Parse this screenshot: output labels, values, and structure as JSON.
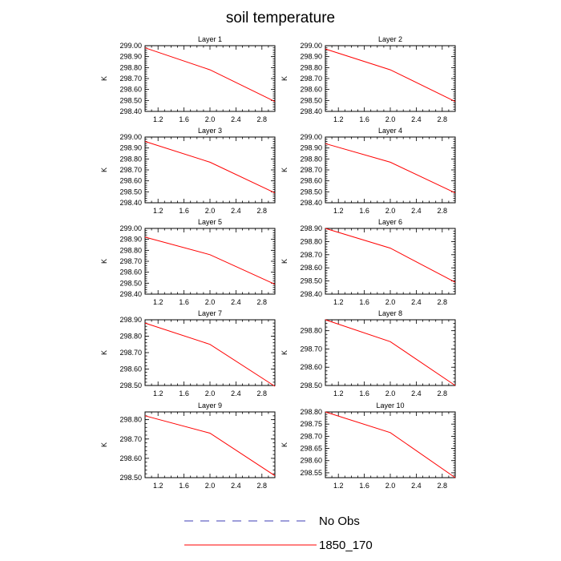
{
  "figure": {
    "title": "soil temperature",
    "colors": {
      "series": "#ff0000",
      "no_obs": "#3c3cb4",
      "axis": "#000000"
    }
  },
  "legend": {
    "entries": [
      {
        "label": "No Obs",
        "style": "dashed",
        "color": "#3c3cb4"
      },
      {
        "label": "1850_170",
        "style": "solid",
        "color": "#ff0000"
      }
    ]
  },
  "chart_data": [
    {
      "type": "line",
      "title": "Layer 1",
      "xlabel": "",
      "ylabel": "K",
      "xlim": [
        1.0,
        3.0
      ],
      "ylim": [
        298.4,
        299.0
      ],
      "xticks": [
        1.2,
        1.6,
        2.0,
        2.4,
        2.8
      ],
      "xtick_labels": [
        "1.2",
        "1.6",
        "2.0",
        "2.4",
        "2.8"
      ],
      "yticks": [
        298.4,
        298.5,
        298.6,
        298.7,
        298.8,
        298.9,
        299.0
      ],
      "ytick_labels": [
        "298.40",
        "298.50",
        "298.60",
        "298.70",
        "298.80",
        "298.90",
        "299.00"
      ],
      "series": [
        {
          "name": "1850_170",
          "x": [
            1,
            2,
            3
          ],
          "y": [
            298.98,
            298.78,
            298.49
          ]
        }
      ]
    },
    {
      "type": "line",
      "title": "Layer 2",
      "xlabel": "",
      "ylabel": "K",
      "xlim": [
        1.0,
        3.0
      ],
      "ylim": [
        298.4,
        299.0
      ],
      "xticks": [
        1.2,
        1.6,
        2.0,
        2.4,
        2.8
      ],
      "xtick_labels": [
        "1.2",
        "1.6",
        "2.0",
        "2.4",
        "2.8"
      ],
      "yticks": [
        298.4,
        298.5,
        298.6,
        298.7,
        298.8,
        298.9,
        299.0
      ],
      "ytick_labels": [
        "298.40",
        "298.50",
        "298.60",
        "298.70",
        "298.80",
        "298.90",
        "299.00"
      ],
      "series": [
        {
          "name": "1850_170",
          "x": [
            1,
            2,
            3
          ],
          "y": [
            298.97,
            298.78,
            298.49
          ]
        }
      ]
    },
    {
      "type": "line",
      "title": "Layer 3",
      "xlabel": "",
      "ylabel": "K",
      "xlim": [
        1.0,
        3.0
      ],
      "ylim": [
        298.4,
        299.0
      ],
      "xticks": [
        1.2,
        1.6,
        2.0,
        2.4,
        2.8
      ],
      "xtick_labels": [
        "1.2",
        "1.6",
        "2.0",
        "2.4",
        "2.8"
      ],
      "yticks": [
        298.4,
        298.5,
        298.6,
        298.7,
        298.8,
        298.9,
        299.0
      ],
      "ytick_labels": [
        "298.40",
        "298.50",
        "298.60",
        "298.70",
        "298.80",
        "298.90",
        "299.00"
      ],
      "series": [
        {
          "name": "1850_170",
          "x": [
            1,
            2,
            3
          ],
          "y": [
            298.96,
            298.77,
            298.49
          ]
        }
      ]
    },
    {
      "type": "line",
      "title": "Layer 4",
      "xlabel": "",
      "ylabel": "K",
      "xlim": [
        1.0,
        3.0
      ],
      "ylim": [
        298.4,
        299.0
      ],
      "xticks": [
        1.2,
        1.6,
        2.0,
        2.4,
        2.8
      ],
      "xtick_labels": [
        "1.2",
        "1.6",
        "2.0",
        "2.4",
        "2.8"
      ],
      "yticks": [
        298.4,
        298.5,
        298.6,
        298.7,
        298.8,
        298.9,
        299.0
      ],
      "ytick_labels": [
        "298.40",
        "298.50",
        "298.60",
        "298.70",
        "298.80",
        "298.90",
        "299.00"
      ],
      "series": [
        {
          "name": "1850_170",
          "x": [
            1,
            2,
            3
          ],
          "y": [
            298.94,
            298.77,
            298.49
          ]
        }
      ]
    },
    {
      "type": "line",
      "title": "Layer 5",
      "xlabel": "",
      "ylabel": "K",
      "xlim": [
        1.0,
        3.0
      ],
      "ylim": [
        298.4,
        299.0
      ],
      "xticks": [
        1.2,
        1.6,
        2.0,
        2.4,
        2.8
      ],
      "xtick_labels": [
        "1.2",
        "1.6",
        "2.0",
        "2.4",
        "2.8"
      ],
      "yticks": [
        298.4,
        298.5,
        298.6,
        298.7,
        298.8,
        298.9,
        299.0
      ],
      "ytick_labels": [
        "298.40",
        "298.50",
        "298.60",
        "298.70",
        "298.80",
        "298.90",
        "299.00"
      ],
      "series": [
        {
          "name": "1850_170",
          "x": [
            1,
            2,
            3
          ],
          "y": [
            298.92,
            298.76,
            298.49
          ]
        }
      ]
    },
    {
      "type": "line",
      "title": "Layer 6",
      "xlabel": "",
      "ylabel": "K",
      "xlim": [
        1.0,
        3.0
      ],
      "ylim": [
        298.4,
        298.9
      ],
      "xticks": [
        1.2,
        1.6,
        2.0,
        2.4,
        2.8
      ],
      "xtick_labels": [
        "1.2",
        "1.6",
        "2.0",
        "2.4",
        "2.8"
      ],
      "yticks": [
        298.4,
        298.5,
        298.6,
        298.7,
        298.8,
        298.9
      ],
      "ytick_labels": [
        "298.40",
        "298.50",
        "298.60",
        "298.70",
        "298.80",
        "298.90"
      ],
      "series": [
        {
          "name": "1850_170",
          "x": [
            1,
            2,
            3
          ],
          "y": [
            298.9,
            298.75,
            298.49
          ]
        }
      ]
    },
    {
      "type": "line",
      "title": "Layer 7",
      "xlabel": "",
      "ylabel": "K",
      "xlim": [
        1.0,
        3.0
      ],
      "ylim": [
        298.5,
        298.9
      ],
      "xticks": [
        1.2,
        1.6,
        2.0,
        2.4,
        2.8
      ],
      "xtick_labels": [
        "1.2",
        "1.6",
        "2.0",
        "2.4",
        "2.8"
      ],
      "yticks": [
        298.5,
        298.6,
        298.7,
        298.8,
        298.9
      ],
      "ytick_labels": [
        "298.50",
        "298.60",
        "298.70",
        "298.80",
        "298.90"
      ],
      "series": [
        {
          "name": "1850_170",
          "x": [
            1,
            2,
            3
          ],
          "y": [
            298.88,
            298.75,
            298.495
          ]
        }
      ]
    },
    {
      "type": "line",
      "title": "Layer 8",
      "xlabel": "",
      "ylabel": "K",
      "xlim": [
        1.0,
        3.0
      ],
      "ylim": [
        298.5,
        298.86
      ],
      "xticks": [
        1.2,
        1.6,
        2.0,
        2.4,
        2.8
      ],
      "xtick_labels": [
        "1.2",
        "1.6",
        "2.0",
        "2.4",
        "2.8"
      ],
      "yticks": [
        298.5,
        298.6,
        298.7,
        298.8
      ],
      "ytick_labels": [
        "298.50",
        "298.60",
        "298.70",
        "298.80"
      ],
      "series": [
        {
          "name": "1850_170",
          "x": [
            1,
            2,
            3
          ],
          "y": [
            298.86,
            298.74,
            298.5
          ]
        }
      ]
    },
    {
      "type": "line",
      "title": "Layer 9",
      "xlabel": "",
      "ylabel": "K",
      "xlim": [
        1.0,
        3.0
      ],
      "ylim": [
        298.5,
        298.84
      ],
      "xticks": [
        1.2,
        1.6,
        2.0,
        2.4,
        2.8
      ],
      "xtick_labels": [
        "1.2",
        "1.6",
        "2.0",
        "2.4",
        "2.8"
      ],
      "yticks": [
        298.5,
        298.6,
        298.7,
        298.8
      ],
      "ytick_labels": [
        "298.50",
        "298.60",
        "298.70",
        "298.80"
      ],
      "series": [
        {
          "name": "1850_170",
          "x": [
            1,
            2,
            3
          ],
          "y": [
            298.82,
            298.73,
            298.51
          ]
        }
      ]
    },
    {
      "type": "line",
      "title": "Layer 10",
      "xlabel": "",
      "ylabel": "K",
      "xlim": [
        1.0,
        3.0
      ],
      "ylim": [
        298.53,
        298.8
      ],
      "xticks": [
        1.2,
        1.6,
        2.0,
        2.4,
        2.8
      ],
      "xtick_labels": [
        "1.2",
        "1.6",
        "2.0",
        "2.4",
        "2.8"
      ],
      "yticks": [
        298.55,
        298.6,
        298.65,
        298.7,
        298.75,
        298.8
      ],
      "ytick_labels": [
        "298.55",
        "298.60",
        "298.65",
        "298.70",
        "298.75",
        "298.80"
      ],
      "series": [
        {
          "name": "1850_170",
          "x": [
            1,
            2,
            3
          ],
          "y": [
            298.8,
            298.715,
            298.53
          ]
        }
      ]
    }
  ]
}
